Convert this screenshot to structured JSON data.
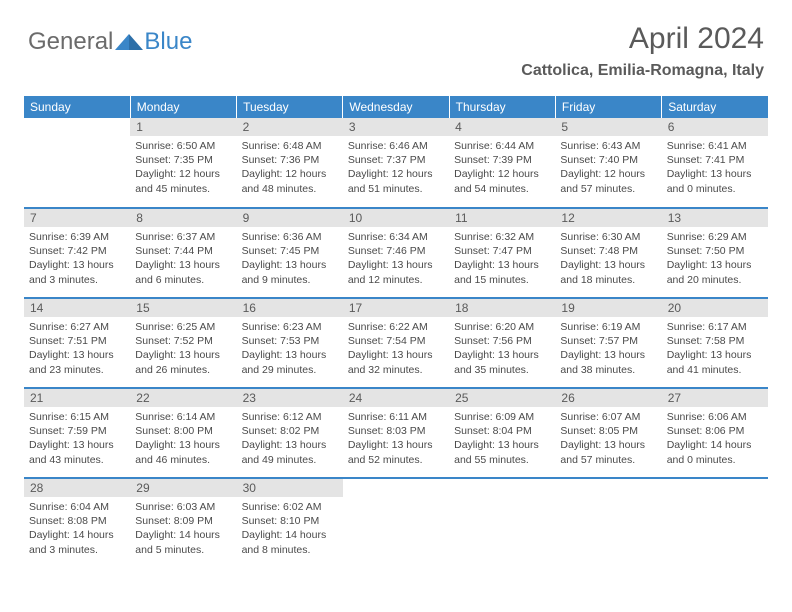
{
  "logo": {
    "text1": "General",
    "text2": "Blue",
    "color1": "#6b6b6b",
    "color2": "#3a86c8"
  },
  "title": "April 2024",
  "location": "Cattolica, Emilia-Romagna, Italy",
  "header_bg": "#3a86c8",
  "daynum_bg": "#e4e4e4",
  "border_color": "#3a86c8",
  "weekdays": [
    "Sunday",
    "Monday",
    "Tuesday",
    "Wednesday",
    "Thursday",
    "Friday",
    "Saturday"
  ],
  "weeks": [
    [
      null,
      {
        "n": "1",
        "sr": "6:50 AM",
        "ss": "7:35 PM",
        "dl": "12 hours and 45 minutes."
      },
      {
        "n": "2",
        "sr": "6:48 AM",
        "ss": "7:36 PM",
        "dl": "12 hours and 48 minutes."
      },
      {
        "n": "3",
        "sr": "6:46 AM",
        "ss": "7:37 PM",
        "dl": "12 hours and 51 minutes."
      },
      {
        "n": "4",
        "sr": "6:44 AM",
        "ss": "7:39 PM",
        "dl": "12 hours and 54 minutes."
      },
      {
        "n": "5",
        "sr": "6:43 AM",
        "ss": "7:40 PM",
        "dl": "12 hours and 57 minutes."
      },
      {
        "n": "6",
        "sr": "6:41 AM",
        "ss": "7:41 PM",
        "dl": "13 hours and 0 minutes."
      }
    ],
    [
      {
        "n": "7",
        "sr": "6:39 AM",
        "ss": "7:42 PM",
        "dl": "13 hours and 3 minutes."
      },
      {
        "n": "8",
        "sr": "6:37 AM",
        "ss": "7:44 PM",
        "dl": "13 hours and 6 minutes."
      },
      {
        "n": "9",
        "sr": "6:36 AM",
        "ss": "7:45 PM",
        "dl": "13 hours and 9 minutes."
      },
      {
        "n": "10",
        "sr": "6:34 AM",
        "ss": "7:46 PM",
        "dl": "13 hours and 12 minutes."
      },
      {
        "n": "11",
        "sr": "6:32 AM",
        "ss": "7:47 PM",
        "dl": "13 hours and 15 minutes."
      },
      {
        "n": "12",
        "sr": "6:30 AM",
        "ss": "7:48 PM",
        "dl": "13 hours and 18 minutes."
      },
      {
        "n": "13",
        "sr": "6:29 AM",
        "ss": "7:50 PM",
        "dl": "13 hours and 20 minutes."
      }
    ],
    [
      {
        "n": "14",
        "sr": "6:27 AM",
        "ss": "7:51 PM",
        "dl": "13 hours and 23 minutes."
      },
      {
        "n": "15",
        "sr": "6:25 AM",
        "ss": "7:52 PM",
        "dl": "13 hours and 26 minutes."
      },
      {
        "n": "16",
        "sr": "6:23 AM",
        "ss": "7:53 PM",
        "dl": "13 hours and 29 minutes."
      },
      {
        "n": "17",
        "sr": "6:22 AM",
        "ss": "7:54 PM",
        "dl": "13 hours and 32 minutes."
      },
      {
        "n": "18",
        "sr": "6:20 AM",
        "ss": "7:56 PM",
        "dl": "13 hours and 35 minutes."
      },
      {
        "n": "19",
        "sr": "6:19 AM",
        "ss": "7:57 PM",
        "dl": "13 hours and 38 minutes."
      },
      {
        "n": "20",
        "sr": "6:17 AM",
        "ss": "7:58 PM",
        "dl": "13 hours and 41 minutes."
      }
    ],
    [
      {
        "n": "21",
        "sr": "6:15 AM",
        "ss": "7:59 PM",
        "dl": "13 hours and 43 minutes."
      },
      {
        "n": "22",
        "sr": "6:14 AM",
        "ss": "8:00 PM",
        "dl": "13 hours and 46 minutes."
      },
      {
        "n": "23",
        "sr": "6:12 AM",
        "ss": "8:02 PM",
        "dl": "13 hours and 49 minutes."
      },
      {
        "n": "24",
        "sr": "6:11 AM",
        "ss": "8:03 PM",
        "dl": "13 hours and 52 minutes."
      },
      {
        "n": "25",
        "sr": "6:09 AM",
        "ss": "8:04 PM",
        "dl": "13 hours and 55 minutes."
      },
      {
        "n": "26",
        "sr": "6:07 AM",
        "ss": "8:05 PM",
        "dl": "13 hours and 57 minutes."
      },
      {
        "n": "27",
        "sr": "6:06 AM",
        "ss": "8:06 PM",
        "dl": "14 hours and 0 minutes."
      }
    ],
    [
      {
        "n": "28",
        "sr": "6:04 AM",
        "ss": "8:08 PM",
        "dl": "14 hours and 3 minutes."
      },
      {
        "n": "29",
        "sr": "6:03 AM",
        "ss": "8:09 PM",
        "dl": "14 hours and 5 minutes."
      },
      {
        "n": "30",
        "sr": "6:02 AM",
        "ss": "8:10 PM",
        "dl": "14 hours and 8 minutes."
      },
      null,
      null,
      null,
      null
    ]
  ],
  "labels": {
    "sunrise": "Sunrise:",
    "sunset": "Sunset:",
    "daylight": "Daylight:"
  }
}
